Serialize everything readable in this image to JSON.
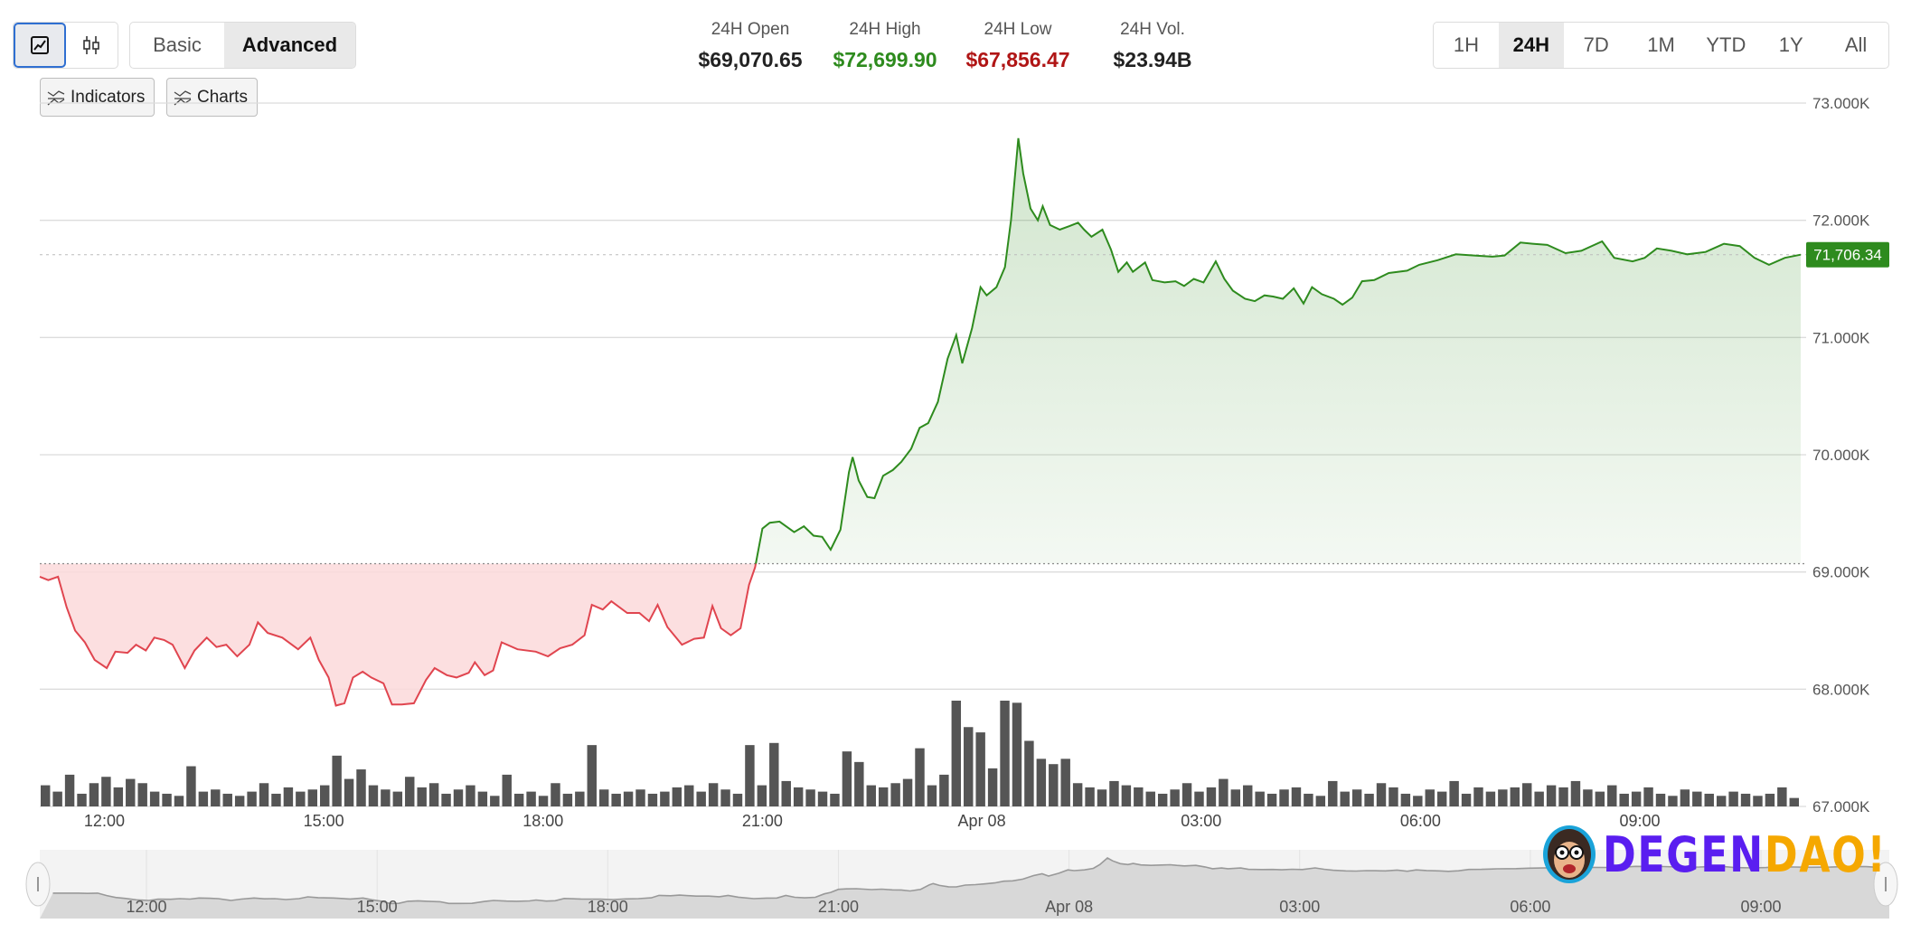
{
  "toolbar": {
    "chart_types": [
      {
        "icon": "line-chart-icon",
        "selected": true
      },
      {
        "icon": "candlestick-icon",
        "selected": false
      }
    ],
    "modes": [
      {
        "label": "Basic",
        "selected": false
      },
      {
        "label": "Advanced",
        "selected": true
      }
    ],
    "indicators_label": "Indicators",
    "charts_label": "Charts"
  },
  "stats": [
    {
      "label": "24H Open",
      "value": "$69,070.65",
      "color": "#222222"
    },
    {
      "label": "24H High",
      "value": "$72,699.90",
      "color": "#2e8b1e"
    },
    {
      "label": "24H Low",
      "value": "$67,856.47",
      "color": "#b01515"
    },
    {
      "label": "24H Vol.",
      "value": "$23.94B",
      "color": "#222222"
    }
  ],
  "ranges": [
    {
      "label": "1H",
      "selected": false
    },
    {
      "label": "24H",
      "selected": true
    },
    {
      "label": "7D",
      "selected": false
    },
    {
      "label": "1M",
      "selected": false
    },
    {
      "label": "YTD",
      "selected": false
    },
    {
      "label": "1Y",
      "selected": false
    },
    {
      "label": "All",
      "selected": false
    }
  ],
  "colors": {
    "up": "#2e8b1e",
    "down": "#e0454f",
    "volume": "#555555",
    "badge": "#2e8b1e"
  },
  "chart_data": {
    "type": "line",
    "open_price": 69070.65,
    "current_price": 71706.34,
    "current_price_label": "71,706.34",
    "ylim": [
      67000,
      73000
    ],
    "y_ticks": [
      {
        "value": 73000,
        "label": "73.000K"
      },
      {
        "value": 72000,
        "label": "72.000K"
      },
      {
        "value": 71000,
        "label": "71.000K"
      },
      {
        "value": 70000,
        "label": "70.000K"
      },
      {
        "value": 69000,
        "label": "69.000K"
      },
      {
        "value": 68000,
        "label": "68.000K"
      },
      {
        "value": 67000,
        "label": "67.000K"
      }
    ],
    "x_ticks": [
      {
        "time": "12:00",
        "label": "12:00"
      },
      {
        "time": "15:00",
        "label": "15:00"
      },
      {
        "time": "18:00",
        "label": "18:00"
      },
      {
        "time": "21:00",
        "label": "21:00"
      },
      {
        "time": "24:00",
        "label": "Apr 08"
      },
      {
        "time": "27:00",
        "label": "03:00"
      },
      {
        "time": "30:00",
        "label": "06:00"
      },
      {
        "time": "33:00",
        "label": "09:00"
      }
    ],
    "grid": true,
    "price": [
      [
        "11:07",
        68960
      ],
      [
        "11:14",
        68930
      ],
      [
        "11:22",
        68960
      ],
      [
        "11:29",
        68700
      ],
      [
        "11:36",
        68500
      ],
      [
        "11:44",
        68400
      ],
      [
        "11:52",
        68250
      ],
      [
        "12:02",
        68180
      ],
      [
        "12:09",
        68320
      ],
      [
        "12:19",
        68310
      ],
      [
        "12:26",
        68380
      ],
      [
        "12:34",
        68330
      ],
      [
        "12:41",
        68440
      ],
      [
        "12:49",
        68420
      ],
      [
        "12:56",
        68380
      ],
      [
        "13:06",
        68180
      ],
      [
        "13:14",
        68330
      ],
      [
        "13:24",
        68440
      ],
      [
        "13:32",
        68360
      ],
      [
        "13:40",
        68380
      ],
      [
        "13:49",
        68280
      ],
      [
        "13:59",
        68380
      ],
      [
        "14:06",
        68570
      ],
      [
        "14:14",
        68480
      ],
      [
        "14:26",
        68440
      ],
      [
        "14:39",
        68340
      ],
      [
        "14:49",
        68440
      ],
      [
        "14:56",
        68250
      ],
      [
        "15:04",
        68100
      ],
      [
        "15:10",
        67860
      ],
      [
        "15:17",
        67880
      ],
      [
        "15:24",
        68100
      ],
      [
        "15:32",
        68150
      ],
      [
        "15:39",
        68100
      ],
      [
        "15:49",
        68050
      ],
      [
        "15:56",
        67870
      ],
      [
        "16:04",
        67870
      ],
      [
        "16:14",
        67880
      ],
      [
        "16:24",
        68080
      ],
      [
        "16:31",
        68180
      ],
      [
        "16:41",
        68120
      ],
      [
        "16:49",
        68100
      ],
      [
        "16:59",
        68140
      ],
      [
        "17:04",
        68230
      ],
      [
        "17:12",
        68120
      ],
      [
        "17:19",
        68160
      ],
      [
        "17:26",
        68400
      ],
      [
        "17:39",
        68340
      ],
      [
        "17:54",
        68320
      ],
      [
        "18:04",
        68280
      ],
      [
        "18:14",
        68350
      ],
      [
        "18:24",
        68380
      ],
      [
        "18:34",
        68460
      ],
      [
        "18:40",
        68720
      ],
      [
        "18:49",
        68680
      ],
      [
        "18:56",
        68750
      ],
      [
        "19:09",
        68650
      ],
      [
        "19:19",
        68650
      ],
      [
        "19:27",
        68580
      ],
      [
        "19:34",
        68720
      ],
      [
        "19:42",
        68530
      ],
      [
        "19:54",
        68380
      ],
      [
        "20:04",
        68430
      ],
      [
        "20:12",
        68440
      ],
      [
        "20:19",
        68710
      ],
      [
        "20:26",
        68520
      ],
      [
        "20:34",
        68460
      ],
      [
        "20:42",
        68520
      ],
      [
        "20:49",
        68890
      ],
      [
        "20:54",
        69040
      ],
      [
        "21:00",
        69370
      ],
      [
        "21:06",
        69420
      ],
      [
        "21:14",
        69430
      ],
      [
        "21:26",
        69340
      ],
      [
        "21:34",
        69390
      ],
      [
        "21:42",
        69310
      ],
      [
        "21:49",
        69300
      ],
      [
        "21:56",
        69190
      ],
      [
        "22:04",
        69360
      ],
      [
        "22:11",
        69850
      ],
      [
        "22:14",
        69980
      ],
      [
        "22:19",
        69780
      ],
      [
        "22:26",
        69640
      ],
      [
        "22:32",
        69630
      ],
      [
        "22:39",
        69820
      ],
      [
        "22:47",
        69870
      ],
      [
        "22:54",
        69940
      ],
      [
        "23:02",
        70050
      ],
      [
        "23:09",
        70230
      ],
      [
        "23:16",
        70270
      ],
      [
        "23:24",
        70450
      ],
      [
        "23:32",
        70820
      ],
      [
        "23:39",
        71020
      ],
      [
        "23:44",
        70780
      ],
      [
        "23:52",
        71080
      ],
      [
        "23:59",
        71430
      ],
      [
        "00:04",
        71360
      ],
      [
        "00:12",
        71430
      ],
      [
        "00:19",
        71600
      ],
      [
        "00:24",
        72000
      ],
      [
        "00:30",
        72700
      ],
      [
        "00:34",
        72400
      ],
      [
        "00:40",
        72100
      ],
      [
        "00:46",
        72000
      ],
      [
        "00:50",
        72120
      ],
      [
        "00:56",
        71960
      ],
      [
        "01:04",
        71920
      ],
      [
        "01:12",
        71950
      ],
      [
        "01:19",
        71980
      ],
      [
        "01:24",
        71920
      ],
      [
        "01:30",
        71860
      ],
      [
        "01:39",
        71920
      ],
      [
        "01:46",
        71750
      ],
      [
        "01:52",
        71560
      ],
      [
        "01:59",
        71640
      ],
      [
        "02:04",
        71560
      ],
      [
        "02:14",
        71640
      ],
      [
        "02:20",
        71490
      ],
      [
        "02:30",
        71470
      ],
      [
        "02:39",
        71480
      ],
      [
        "02:46",
        71440
      ],
      [
        "02:54",
        71500
      ],
      [
        "03:02",
        71470
      ],
      [
        "03:12",
        71650
      ],
      [
        "03:19",
        71500
      ],
      [
        "03:26",
        71400
      ],
      [
        "03:36",
        71330
      ],
      [
        "03:44",
        71310
      ],
      [
        "03:52",
        71360
      ],
      [
        "03:59",
        71350
      ],
      [
        "04:07",
        71330
      ],
      [
        "04:16",
        71420
      ],
      [
        "04:24",
        71290
      ],
      [
        "04:31",
        71430
      ],
      [
        "04:39",
        71370
      ],
      [
        "04:49",
        71330
      ],
      [
        "04:56",
        71280
      ],
      [
        "05:04",
        71340
      ],
      [
        "05:12",
        71480
      ],
      [
        "05:22",
        71490
      ],
      [
        "05:34",
        71550
      ],
      [
        "05:49",
        71570
      ],
      [
        "05:59",
        71620
      ],
      [
        "06:14",
        71660
      ],
      [
        "06:29",
        71710
      ],
      [
        "06:44",
        71700
      ],
      [
        "06:59",
        71690
      ],
      [
        "07:09",
        71700
      ],
      [
        "07:22",
        71810
      ],
      [
        "07:32",
        71800
      ],
      [
        "07:44",
        71790
      ],
      [
        "07:59",
        71720
      ],
      [
        "08:12",
        71740
      ],
      [
        "08:29",
        71820
      ],
      [
        "08:39",
        71680
      ],
      [
        "08:54",
        71650
      ],
      [
        "09:04",
        71680
      ],
      [
        "09:14",
        71760
      ],
      [
        "09:26",
        71740
      ],
      [
        "09:39",
        71710
      ],
      [
        "09:54",
        71730
      ],
      [
        "10:09",
        71800
      ],
      [
        "10:22",
        71780
      ],
      [
        "10:34",
        71680
      ],
      [
        "10:46",
        71620
      ],
      [
        "10:59",
        71680
      ],
      [
        "11:12",
        71706.34
      ]
    ],
    "volume_relative_pct": [
      20,
      14,
      30,
      12,
      22,
      28,
      18,
      26,
      22,
      14,
      12,
      10,
      38,
      14,
      16,
      12,
      10,
      14,
      22,
      12,
      18,
      14,
      16,
      20,
      48,
      26,
      35,
      20,
      16,
      14,
      28,
      18,
      22,
      12,
      16,
      20,
      14,
      10,
      30,
      12,
      14,
      10,
      22,
      12,
      14,
      58,
      16,
      12,
      14,
      16,
      12,
      14,
      18,
      20,
      14,
      22,
      16,
      12,
      58,
      20,
      60,
      24,
      18,
      16,
      14,
      12,
      52,
      42,
      20,
      18,
      22,
      26,
      55,
      20,
      30,
      100,
      75,
      70,
      36,
      100,
      98,
      62,
      45,
      40,
      45,
      22,
      18,
      16,
      24,
      20,
      18,
      14,
      12,
      16,
      22,
      14,
      18,
      26,
      16,
      20,
      14,
      12,
      16,
      18,
      12,
      10,
      24,
      14,
      16,
      12,
      22,
      18,
      12,
      10,
      16,
      14,
      24,
      12,
      18,
      14,
      16,
      18,
      22,
      14,
      20,
      18,
      24,
      16,
      14,
      20,
      12,
      14,
      18,
      12,
      10,
      16,
      14,
      12,
      10,
      14,
      12,
      10,
      12,
      18,
      8
    ]
  },
  "navigator": {
    "x_ticks": [
      {
        "time": "12:00",
        "label": "12:00"
      },
      {
        "time": "15:00",
        "label": "15:00"
      },
      {
        "time": "18:00",
        "label": "18:00"
      },
      {
        "time": "21:00",
        "label": "21:00"
      },
      {
        "time": "24:00",
        "label": "Apr 08"
      },
      {
        "time": "27:00",
        "label": "03:00"
      },
      {
        "time": "30:00",
        "label": "06:00"
      },
      {
        "time": "33:00",
        "label": "09:00"
      }
    ]
  },
  "logo": {
    "text_a": "DEGEN",
    "text_b": "DAO!",
    "color_a": "#5a1ef0",
    "color_b": "#f5a800"
  }
}
